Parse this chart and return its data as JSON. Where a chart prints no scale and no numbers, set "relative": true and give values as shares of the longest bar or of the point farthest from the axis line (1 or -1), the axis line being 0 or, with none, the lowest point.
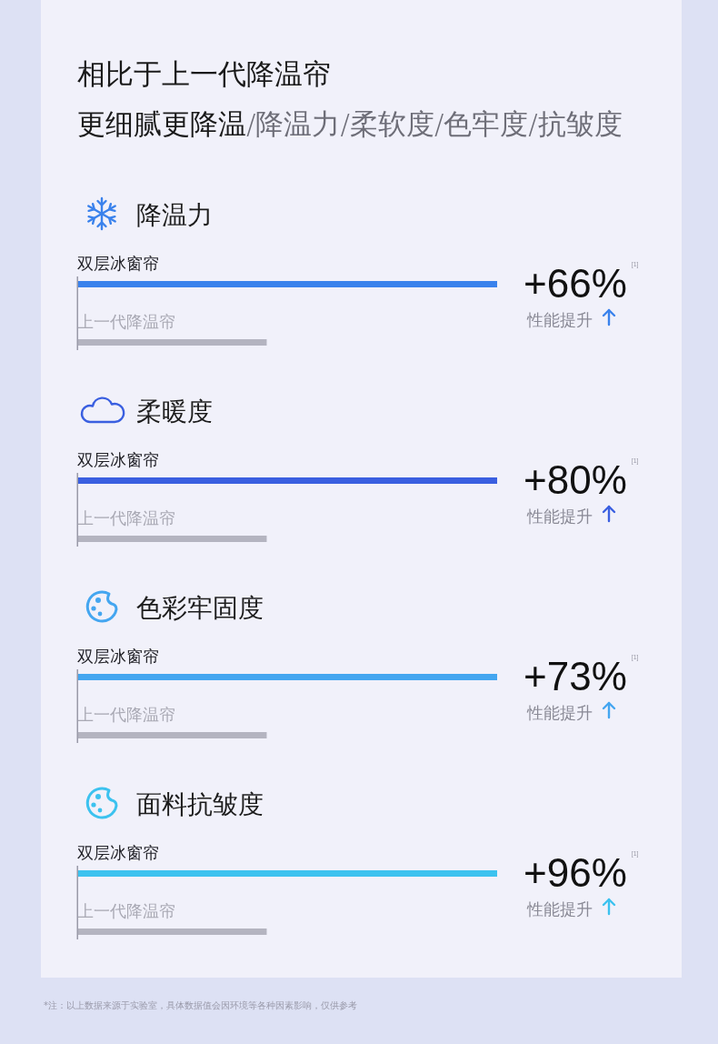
{
  "chart_data": [
    {
      "type": "other",
      "title": "相比于上一代降温帘",
      "subtitle": "**更细腻更降温**/降温力/柔软度/色牢度/抗皱度",
      "annotations": [
        "*注：以上数据来源于实验室，具体数据值会因环境等各种因素影响，仅供参考"
      ]
    },
    {
      "type": "bar",
      "orientation": "horizontal",
      "relative": true,
      "title": "降温力",
      "categories": [
        "双层冰窗帘",
        "上一代降温帘"
      ],
      "values": [
        1,
        0.45
      ],
      "colors": [
        "#3a82ec",
        "#b4b4c0"
      ]
    },
    {
      "type": "other",
      "annotations": [
        "+66%$^{[1]}$",
        "性能提升"
      ]
    },
    {
      "type": "bar",
      "orientation": "horizontal",
      "relative": true,
      "title": "柔暖度",
      "categories": [
        "双层冰窗帘",
        "上一代降温帘"
      ],
      "values": [
        1,
        0.45
      ],
      "colors": [
        "#3a5fe0",
        "#b4b4c0"
      ]
    },
    {
      "type": "other",
      "annotations": [
        "+80%$^{[1]}$",
        "性能提升"
      ]
    },
    {
      "type": "bar",
      "orientation": "horizontal",
      "relative": true,
      "title": "色彩牢固度",
      "categories": [
        "双层冰窗帘",
        "上一代降温帘"
      ],
      "values": [
        1,
        0.45
      ],
      "colors": [
        "#44a6f0",
        "#b4b4c0"
      ]
    },
    {
      "type": "other",
      "annotations": [
        "+73%$^{[1]}$",
        "性能提升"
      ]
    },
    {
      "type": "bar",
      "orientation": "horizontal",
      "relative": true,
      "title": "面料抗皱度",
      "categories": [
        "双层冰窗帘",
        "上一代降温帘"
      ],
      "values": [
        1,
        0.45
      ],
      "colors": [
        "#3cc2ef",
        "#b4b4c0"
      ]
    },
    {
      "type": "other",
      "annotations": [
        "+96%$^{[1]}$",
        "性能提升"
      ]
    }
  ]
}
